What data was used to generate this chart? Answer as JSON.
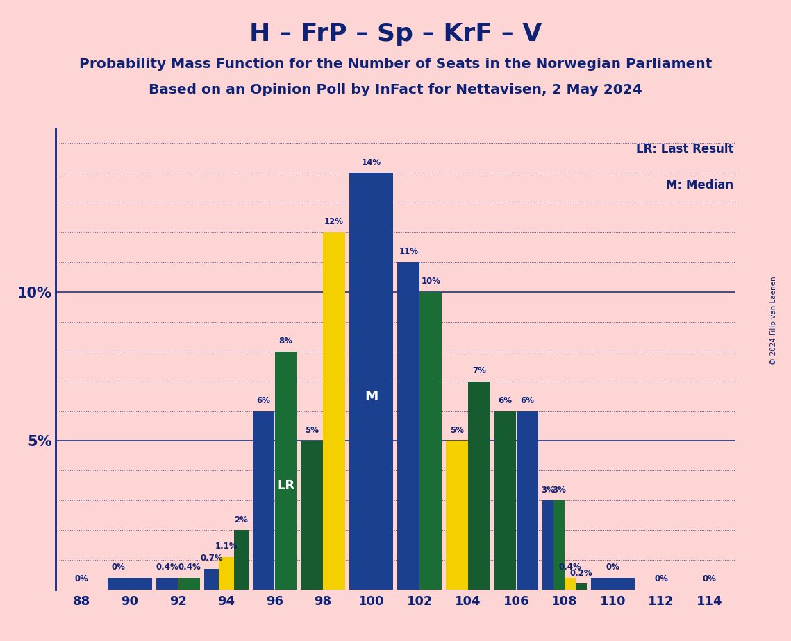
{
  "title": "H – FrP – Sp – KrF – V",
  "subtitle1": "Probability Mass Function for the Number of Seats in the Norwegian Parliament",
  "subtitle2": "Based on an Opinion Poll by InFact for Nettavisen, 2 May 2024",
  "copyright": "© 2024 Filip van Laenen",
  "legend_lr": "LR: Last Result",
  "legend_m": "M: Median",
  "background_color": "#fdd5d5",
  "text_color": "#0d2175",
  "bar_color_blue": "#1b4090",
  "bar_color_green": "#1a6e35",
  "bar_color_yellow": "#f5d000",
  "bar_color_darkgreen": "#165c30",
  "lr_seat": 96,
  "median_seat": 100,
  "ylim": [
    0,
    0.155
  ],
  "bar_groups": [
    {
      "seat": 88,
      "bars": [
        {
          "v": 0.0,
          "c": "blue",
          "lbl": "0%"
        }
      ]
    },
    {
      "seat": 90,
      "bars": [
        {
          "v": 0.004,
          "c": "blue",
          "lbl": "0%"
        },
        {
          "v": 0.004,
          "c": "blue",
          "lbl": null
        }
      ]
    },
    {
      "seat": 92,
      "bars": [
        {
          "v": 0.004,
          "c": "blue",
          "lbl": "0.4%"
        },
        {
          "v": 0.004,
          "c": "green",
          "lbl": "0.4%"
        }
      ]
    },
    {
      "seat": 94,
      "bars": [
        {
          "v": 0.007,
          "c": "blue",
          "lbl": "0.7%"
        },
        {
          "v": 0.011,
          "c": "yellow",
          "lbl": "1.1%"
        },
        {
          "v": 0.02,
          "c": "darkgreen",
          "lbl": "2%"
        }
      ]
    },
    {
      "seat": 96,
      "bars": [
        {
          "v": 0.06,
          "c": "blue",
          "lbl": "6%"
        },
        {
          "v": 0.08,
          "c": "green",
          "lbl": "8%"
        }
      ]
    },
    {
      "seat": 98,
      "bars": [
        {
          "v": 0.05,
          "c": "darkgreen",
          "lbl": "5%"
        },
        {
          "v": 0.12,
          "c": "yellow",
          "lbl": "12%"
        }
      ]
    },
    {
      "seat": 100,
      "bars": [
        {
          "v": 0.14,
          "c": "blue",
          "lbl": "14%"
        }
      ]
    },
    {
      "seat": 102,
      "bars": [
        {
          "v": 0.11,
          "c": "blue",
          "lbl": "11%"
        },
        {
          "v": 0.1,
          "c": "green",
          "lbl": "10%"
        }
      ]
    },
    {
      "seat": 104,
      "bars": [
        {
          "v": 0.05,
          "c": "yellow",
          "lbl": "5%"
        },
        {
          "v": 0.07,
          "c": "darkgreen",
          "lbl": "7%"
        }
      ]
    },
    {
      "seat": 106,
      "bars": [
        {
          "v": 0.06,
          "c": "darkgreen",
          "lbl": "6%"
        },
        {
          "v": 0.06,
          "c": "blue",
          "lbl": "6%"
        }
      ]
    },
    {
      "seat": 108,
      "bars": [
        {
          "v": 0.03,
          "c": "blue",
          "lbl": "3%"
        },
        {
          "v": 0.03,
          "c": "green",
          "lbl": "3%"
        },
        {
          "v": 0.004,
          "c": "yellow",
          "lbl": "0.4%"
        },
        {
          "v": 0.002,
          "c": "darkgreen",
          "lbl": "0.2%"
        }
      ]
    },
    {
      "seat": 110,
      "bars": [
        {
          "v": 0.004,
          "c": "blue",
          "lbl": "0%"
        }
      ]
    },
    {
      "seat": 112,
      "bars": [
        {
          "v": 0.0,
          "c": "blue",
          "lbl": "0%"
        }
      ]
    },
    {
      "seat": 114,
      "bars": [
        {
          "v": 0.0,
          "c": "blue",
          "lbl": "0%"
        }
      ]
    }
  ]
}
